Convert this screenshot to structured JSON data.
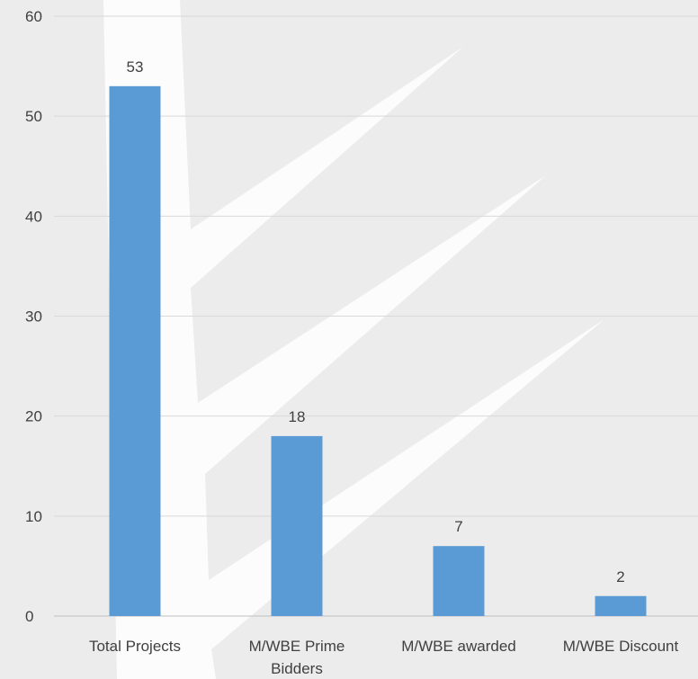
{
  "chart_data": {
    "type": "bar",
    "categories": [
      "Total Projects",
      "M/WBE Prime Bidders",
      "M/WBE awarded",
      "M/WBE Discount"
    ],
    "category_lines": [
      [
        "Total Projects"
      ],
      [
        "M/WBE Prime",
        "Bidders"
      ],
      [
        "M/WBE awarded"
      ],
      [
        "M/WBE Discount"
      ]
    ],
    "values": [
      53,
      18,
      7,
      2
    ],
    "data_labels": [
      "53",
      "18",
      "7",
      "2"
    ],
    "y_ticks": [
      "0",
      "10",
      "20",
      "30",
      "40",
      "50",
      "60"
    ],
    "ylim": [
      0,
      60
    ],
    "grid": true,
    "legend": "none",
    "title": "",
    "xlabel": "",
    "ylabel": "",
    "colors": {
      "bar": "#5b9bd5",
      "background": "#ececec",
      "grid": "#d9d9d9",
      "text": "#404040",
      "watermark": "#ffffff"
    }
  }
}
